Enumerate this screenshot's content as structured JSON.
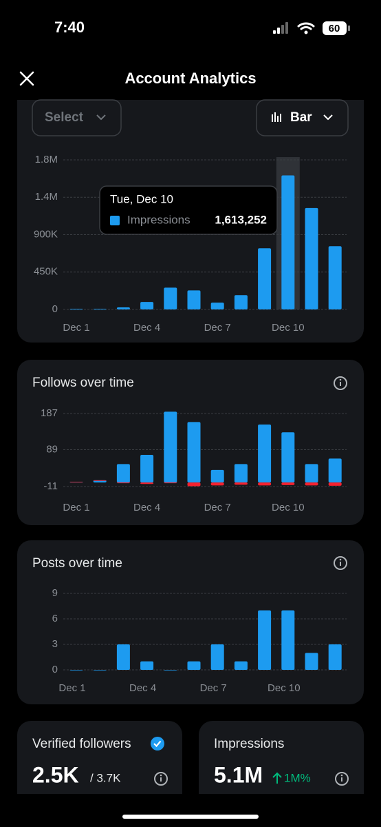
{
  "status_bar": {
    "time": "7:40",
    "battery": "60"
  },
  "header": {
    "title": "Account Analytics"
  },
  "controls": {
    "filter": "Select",
    "chart_type": "Bar"
  },
  "charts": [
    {
      "type": "bar",
      "categories": [
        "Dec 1",
        null,
        null,
        "Dec 4",
        null,
        null,
        "Dec 7",
        null,
        null,
        "Dec 10",
        null,
        null
      ],
      "series": [
        {
          "name": "Impressions",
          "color": "#1d9bf0",
          "values": [
            8000,
            8000,
            25000,
            90000,
            262000,
            229000,
            82000,
            172000,
            736000,
            1613252,
            1220000,
            761000
          ]
        }
      ],
      "ylim": [
        0,
        1800000
      ],
      "yticks": [
        0,
        {
          "value": 450000,
          "label": "450K"
        },
        {
          "value": 900000,
          "label": "900K"
        },
        {
          "value": 1350000,
          "label": "1.4M"
        },
        {
          "value": 1800000,
          "label": "1.8M"
        }
      ],
      "grid": true,
      "tooltip": {
        "title": "Tue, Dec 10",
        "index": 9,
        "value_label": "1,613,252"
      }
    },
    {
      "type": "stacked_bar",
      "title": "Follows over time",
      "categories": [
        "Dec 1",
        null,
        null,
        "Dec 4",
        null,
        null,
        "Dec 7",
        null,
        null,
        "Dec 10",
        null,
        null
      ],
      "series": [
        {
          "color": "#1d9bf0",
          "values": [
            2,
            6,
            50,
            75,
            192,
            164,
            34,
            50,
            157,
            136,
            50,
            65
          ]
        },
        {
          "color": "#f4212e",
          "values": [
            0,
            0,
            -2,
            -4,
            -2,
            -10,
            -8,
            -6,
            -8,
            -7,
            -8,
            -9
          ]
        }
      ],
      "ylim": [
        -11,
        187
      ],
      "yticks": [
        -11,
        89,
        187
      ],
      "grid": true
    },
    {
      "type": "bar",
      "title": "Posts over time",
      "categories": [
        "Dec 1",
        null,
        null,
        "Dec 4",
        null,
        null,
        "Dec 7",
        null,
        null,
        "Dec 10",
        null,
        null
      ],
      "series": [
        {
          "color": "#1d9bf0",
          "values": [
            0,
            0,
            3,
            1,
            0,
            1,
            3,
            1,
            7,
            7,
            2,
            3
          ]
        }
      ],
      "ylim": [
        0,
        9
      ],
      "yticks": [
        0,
        3,
        6,
        9
      ],
      "grid": true
    }
  ],
  "stats": [
    {
      "label": "Verified followers",
      "value": "2.5K",
      "total": "/ 3.7K"
    },
    {
      "label": "Impressions",
      "value": "5.1M",
      "change": "1M%"
    }
  ]
}
